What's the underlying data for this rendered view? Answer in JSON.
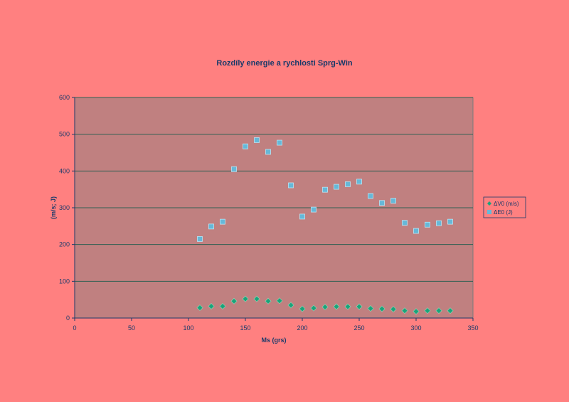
{
  "chart_data": {
    "type": "scatter",
    "title": "Rozdíly energie a rychlosti Sprg-Win",
    "xlabel": "Ms (grs)",
    "ylabel": "(m/s; J)",
    "xlim": [
      0,
      350
    ],
    "ylim": [
      0,
      600
    ],
    "xticks": [
      0,
      50,
      100,
      150,
      200,
      250,
      300,
      350
    ],
    "yticks": [
      0,
      100,
      200,
      300,
      400,
      500,
      600
    ],
    "grid": "horizontal",
    "legend_position": "right",
    "series": [
      {
        "name": "ΔV0 (m/s)",
        "marker": "diamond",
        "color": "#1aa37a",
        "points": [
          [
            110,
            28
          ],
          [
            120,
            32
          ],
          [
            130,
            32
          ],
          [
            140,
            46
          ],
          [
            150,
            52
          ],
          [
            160,
            52
          ],
          [
            170,
            46
          ],
          [
            180,
            47
          ],
          [
            190,
            35
          ],
          [
            200,
            25
          ],
          [
            210,
            27
          ],
          [
            220,
            30
          ],
          [
            230,
            31
          ],
          [
            240,
            31
          ],
          [
            250,
            31
          ],
          [
            260,
            26
          ],
          [
            270,
            25
          ],
          [
            280,
            24
          ],
          [
            290,
            20
          ],
          [
            300,
            18
          ],
          [
            310,
            20
          ],
          [
            320,
            20
          ],
          [
            330,
            20
          ]
        ]
      },
      {
        "name": "ΔE0 (J)",
        "marker": "square",
        "color": "#66b8d8",
        "points": [
          [
            110,
            215
          ],
          [
            120,
            249
          ],
          [
            130,
            262
          ],
          [
            140,
            405
          ],
          [
            150,
            467
          ],
          [
            160,
            484
          ],
          [
            170,
            452
          ],
          [
            180,
            477
          ],
          [
            190,
            361
          ],
          [
            200,
            276
          ],
          [
            210,
            295
          ],
          [
            220,
            349
          ],
          [
            230,
            357
          ],
          [
            240,
            364
          ],
          [
            250,
            371
          ],
          [
            260,
            332
          ],
          [
            270,
            313
          ],
          [
            280,
            319
          ],
          [
            290,
            259
          ],
          [
            300,
            237
          ],
          [
            310,
            254
          ],
          [
            320,
            258
          ],
          [
            330,
            262
          ]
        ]
      }
    ]
  },
  "colors": {
    "page_background": "#ff8080",
    "plot_background": "#c08080",
    "gridline": "#2f5f52",
    "text": "#1a3a6a"
  }
}
